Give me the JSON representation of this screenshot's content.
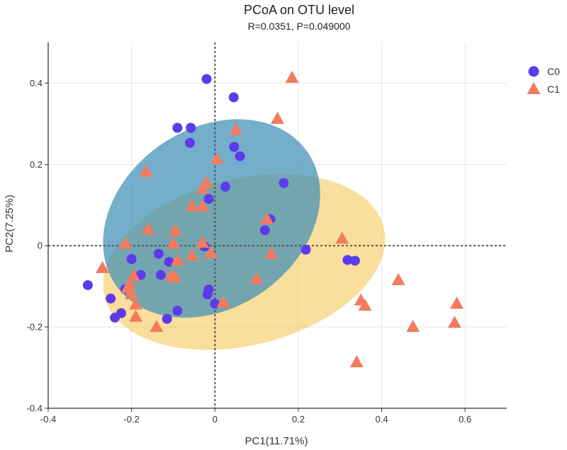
{
  "chart_data": {
    "type": "scatter",
    "title": "PCoA on OTU level",
    "subtitle": "R=0.0351, P=0.049000",
    "xlabel": "PC1(11.71%)",
    "ylabel": "PC2(7.25%)",
    "xlim": [
      -0.4,
      0.7
    ],
    "ylim": [
      -0.4,
      0.5
    ],
    "xticks": [
      -0.4,
      -0.2,
      0,
      0.2,
      0.4,
      0.6
    ],
    "xtick_labels": [
      "-0.4",
      "-0.2",
      "0",
      "0.2",
      "0.4",
      "0.6"
    ],
    "yticks": [
      -0.4,
      -0.2,
      0,
      0.2,
      0.4
    ],
    "ytick_labels": [
      "-0.4",
      "-0.2",
      "0",
      "0.2",
      "0.4"
    ],
    "grid": true,
    "legend_position": "top-right",
    "series": [
      {
        "name": "C0",
        "marker": "circle",
        "color": "#5b3bec",
        "ellipse": {
          "cx": -0.008,
          "cy": 0.067,
          "rx": 0.28,
          "ry": 0.215,
          "angle_deg": -35,
          "color": "#3f8fb5"
        },
        "points": [
          [
            -0.02,
            0.41
          ],
          [
            0.045,
            0.365
          ],
          [
            -0.09,
            0.29
          ],
          [
            -0.058,
            0.29
          ],
          [
            -0.06,
            0.253
          ],
          [
            0.046,
            0.243
          ],
          [
            0.06,
            0.22
          ],
          [
            0.165,
            0.154
          ],
          [
            0.025,
            0.145
          ],
          [
            -0.015,
            0.115
          ],
          [
            0.133,
            0.065
          ],
          [
            0.12,
            0.038
          ],
          [
            -0.025,
            -0.002
          ],
          [
            0.218,
            -0.01
          ],
          [
            -0.135,
            -0.02
          ],
          [
            -0.11,
            -0.04
          ],
          [
            -0.2,
            -0.033
          ],
          [
            0.318,
            -0.035
          ],
          [
            0.336,
            -0.037
          ],
          [
            -0.13,
            -0.072
          ],
          [
            -0.178,
            -0.072
          ],
          [
            -0.305,
            -0.097
          ],
          [
            -0.015,
            -0.108
          ],
          [
            -0.018,
            -0.12
          ],
          [
            -0.215,
            -0.107
          ],
          [
            -0.25,
            -0.13
          ],
          [
            0.0,
            -0.143
          ],
          [
            -0.09,
            -0.16
          ],
          [
            -0.225,
            -0.166
          ],
          [
            -0.24,
            -0.177
          ],
          [
            -0.115,
            -0.18
          ]
        ]
      },
      {
        "name": "C1",
        "marker": "triangle",
        "color": "#f47a5f",
        "ellipse": {
          "cx": 0.07,
          "cy": -0.04,
          "rx": 0.345,
          "ry": 0.2,
          "angle_deg": -14,
          "color": "#f5c24a"
        },
        "points": [
          [
            0.185,
            0.413
          ],
          [
            0.15,
            0.312
          ],
          [
            0.05,
            0.285
          ],
          [
            0.005,
            0.213
          ],
          [
            -0.165,
            0.182
          ],
          [
            -0.02,
            0.155
          ],
          [
            -0.03,
            0.14
          ],
          [
            -0.055,
            0.097
          ],
          [
            -0.03,
            0.097
          ],
          [
            0.125,
            0.065
          ],
          [
            -0.16,
            0.04
          ],
          [
            -0.095,
            0.037
          ],
          [
            -0.03,
            0.007
          ],
          [
            0.305,
            0.017
          ],
          [
            -0.215,
            0.005
          ],
          [
            -0.1,
            0.005
          ],
          [
            -0.01,
            -0.018
          ],
          [
            -0.055,
            -0.025
          ],
          [
            0.135,
            -0.02
          ],
          [
            -0.09,
            -0.037
          ],
          [
            -0.27,
            -0.055
          ],
          [
            -0.195,
            -0.075
          ],
          [
            -0.105,
            -0.075
          ],
          [
            -0.095,
            -0.078
          ],
          [
            0.1,
            -0.082
          ],
          [
            0.44,
            -0.085
          ],
          [
            -0.205,
            -0.095
          ],
          [
            -0.21,
            -0.105
          ],
          [
            -0.2,
            -0.12
          ],
          [
            0.35,
            -0.135
          ],
          [
            0.36,
            -0.148
          ],
          [
            0.02,
            -0.14
          ],
          [
            0.58,
            -0.143
          ],
          [
            -0.19,
            -0.145
          ],
          [
            -0.19,
            -0.175
          ],
          [
            0.575,
            -0.19
          ],
          [
            0.475,
            -0.2
          ],
          [
            -0.14,
            -0.2
          ],
          [
            0.34,
            -0.287
          ]
        ]
      }
    ]
  }
}
